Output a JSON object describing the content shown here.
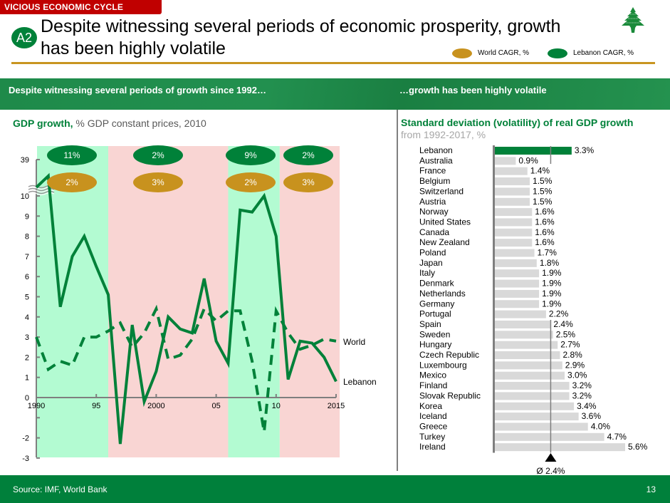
{
  "header": {
    "section_tag": "VICIOUS ECONOMIC CYCLE",
    "badge": "A2",
    "title_line1": "Despite witnessing several periods of economic prosperity, growth",
    "title_line2": "has been highly volatile",
    "legend": [
      {
        "label": "World CAGR, %",
        "color": "#c8921e"
      },
      {
        "label": "Lebanon CAGR, %",
        "color": "#008139"
      }
    ],
    "logo": "cedar-tree-icon"
  },
  "band": {
    "left": "Despite witnessing several periods of growth since 1992…",
    "right": "…growth has been highly volatile"
  },
  "colors": {
    "green": "#008139",
    "gold": "#c8921e",
    "growth_period": "#b3fbd2",
    "slow_period": "#f9d5d3",
    "bar_gray": "#d9d9d9",
    "axis_gray": "#7f7f7f"
  },
  "left_panel": {
    "subtitle_bold": "GDP growth,",
    "subtitle_rest": " % GDP constant prices, 2010"
  },
  "right_panel": {
    "subtitle_line1": "Standard deviation (volatility) of real GDP growth",
    "subtitle_line2": "from 1992-2017, %"
  },
  "chart_data": [
    {
      "type": "line",
      "title": "GDP growth, % GDP constant prices, 2010",
      "xlabel": "",
      "ylabel": "",
      "x": [
        1990,
        1991,
        1992,
        1993,
        1994,
        1995,
        1996,
        1997,
        1998,
        1999,
        2000,
        2001,
        2002,
        2003,
        2004,
        2005,
        2006,
        2007,
        2008,
        2009,
        2010,
        2011,
        2012,
        2013,
        2014,
        2015
      ],
      "x_tick_labels": [
        {
          "x": 1990,
          "label": "1990"
        },
        {
          "x": 1995,
          "label": "95"
        },
        {
          "x": 2000,
          "label": "2000"
        },
        {
          "x": 2005,
          "label": "05"
        },
        {
          "x": 2010,
          "label": "10"
        },
        {
          "x": 2015,
          "label": "2015"
        }
      ],
      "y_tick_labels": [
        "-3",
        "-2",
        "",
        "0",
        "1",
        "2",
        "3",
        "4",
        "5",
        "6",
        "7",
        "8",
        "9",
        "10",
        "39"
      ],
      "y_ticks": [
        -3,
        -2,
        -1,
        0,
        1,
        2,
        3,
        4,
        5,
        6,
        7,
        8,
        9,
        10
      ],
      "ylim": [
        -3,
        39
      ],
      "axis_break": "between 10 and 39",
      "series": [
        {
          "name": "Lebanon",
          "style": "solid",
          "values": [
            39.0,
            38.2,
            4.5,
            7.0,
            8.0,
            6.5,
            5.1,
            -2.3,
            3.6,
            -0.2,
            1.3,
            4.0,
            3.4,
            3.2,
            5.9,
            2.8,
            1.7,
            9.3,
            9.2,
            10.0,
            8.0,
            0.9,
            2.8,
            2.7,
            2.0,
            0.8
          ]
        },
        {
          "name": "World",
          "style": "dashed",
          "values": [
            3.0,
            1.4,
            1.8,
            1.6,
            3.0,
            3.0,
            3.3,
            3.7,
            2.5,
            3.2,
            4.4,
            1.9,
            2.1,
            2.9,
            4.4,
            3.8,
            4.3,
            4.3,
            1.8,
            -1.7,
            4.3,
            3.2,
            2.4,
            2.6,
            2.9,
            2.8
          ]
        }
      ],
      "periods": [
        {
          "from": 1990,
          "to": 1996,
          "kind": "growth",
          "lebanon_cagr": "11%",
          "world_cagr": "2%"
        },
        {
          "from": 1996,
          "to": 2006,
          "kind": "slow",
          "lebanon_cagr": "2%",
          "world_cagr": "3%"
        },
        {
          "from": 2006,
          "to": 2010.3,
          "kind": "growth",
          "lebanon_cagr": "9%",
          "world_cagr": "2%"
        },
        {
          "from": 2010.3,
          "to": 2015.3,
          "kind": "slow",
          "lebanon_cagr": "2%",
          "world_cagr": "3%"
        }
      ],
      "legend": "inline-right"
    },
    {
      "type": "bar",
      "orientation": "horizontal",
      "title": "Standard deviation (volatility) of real GDP growth",
      "subtitle": "from 1992-2017, %",
      "categories": [
        "Lebanon",
        "Australia",
        "France",
        "Belgium",
        "Switzerland",
        "Austria",
        "Norway",
        "United States",
        "Canada",
        "New Zealand",
        "Poland",
        "Japan",
        "Italy",
        "Denmark",
        "Netherlands",
        "Germany",
        "Portugal",
        "Spain",
        "Sweden",
        "Hungary",
        "Czech Republic",
        "Luxembourg",
        "Mexico",
        "Finland",
        "Slovak Republic",
        "Korea",
        "Iceland",
        "Greece",
        "Turkey",
        "Ireland"
      ],
      "values": [
        3.3,
        0.9,
        1.4,
        1.5,
        1.5,
        1.5,
        1.6,
        1.6,
        1.6,
        1.6,
        1.7,
        1.8,
        1.9,
        1.9,
        1.9,
        1.9,
        2.2,
        2.4,
        2.5,
        2.7,
        2.8,
        2.9,
        3.0,
        3.2,
        3.2,
        3.4,
        3.6,
        4.0,
        4.7,
        5.6
      ],
      "value_labels": [
        "3.3%",
        "0.9%",
        "1.4%",
        "1.5%",
        "1.5%",
        "1.5%",
        "1.6%",
        "1.6%",
        "1.6%",
        "1.6%",
        "1.7%",
        "1.8%",
        "1.9%",
        "1.9%",
        "1.9%",
        "1.9%",
        "2.2%",
        "2.4%",
        "2.5%",
        "2.7%",
        "2.8%",
        "2.9%",
        "3.0%",
        "3.2%",
        "3.2%",
        "3.4%",
        "3.6%",
        "4.0%",
        "4.7%",
        "5.6%"
      ],
      "highlight": "Lebanon",
      "average": 2.4,
      "average_label": "Ø 2.4%",
      "xlim": [
        0,
        5.6
      ]
    }
  ],
  "footer": {
    "source": "Source: IMF, World Bank",
    "page": "13"
  }
}
